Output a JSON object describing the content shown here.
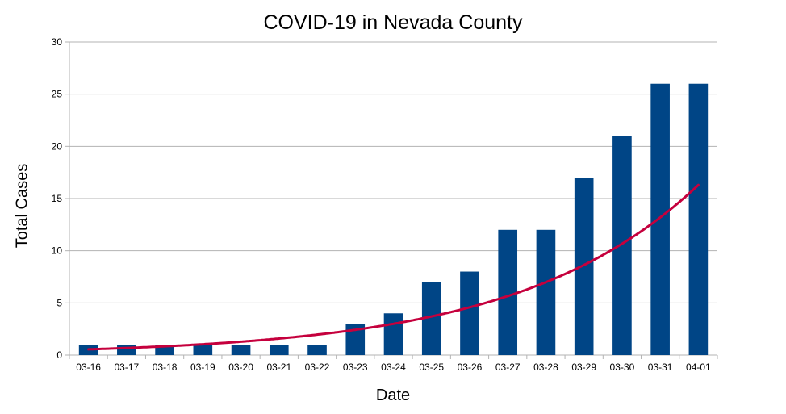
{
  "chart_data": {
    "type": "bar",
    "title": "COVID-19 in Nevada County",
    "xlabel": "Date",
    "ylabel": "Total Cases",
    "categories": [
      "03-16",
      "03-17",
      "03-18",
      "03-19",
      "03-20",
      "03-21",
      "03-22",
      "03-23",
      "03-24",
      "03-25",
      "03-26",
      "03-27",
      "03-28",
      "03-29",
      "03-30",
      "03-31",
      "04-01"
    ],
    "series": [
      {
        "values": [
          1,
          1,
          1,
          1,
          1,
          1,
          1,
          3,
          4,
          7,
          8,
          12,
          12,
          17,
          21,
          26,
          26
        ],
        "color": "#004586"
      }
    ],
    "trendline": {
      "type": "exponential",
      "color": "#c5003d",
      "approx_values": [
        0.55,
        0.68,
        0.84,
        1.04,
        1.28,
        1.58,
        1.96,
        2.42,
        3.0,
        3.7,
        4.6,
        5.7,
        7.0,
        8.7,
        10.7,
        13.2,
        16.3
      ]
    },
    "ylim": [
      0,
      30
    ],
    "yticks": [
      0,
      5,
      10,
      15,
      20,
      25,
      30
    ],
    "grid": true,
    "legend": "none"
  }
}
